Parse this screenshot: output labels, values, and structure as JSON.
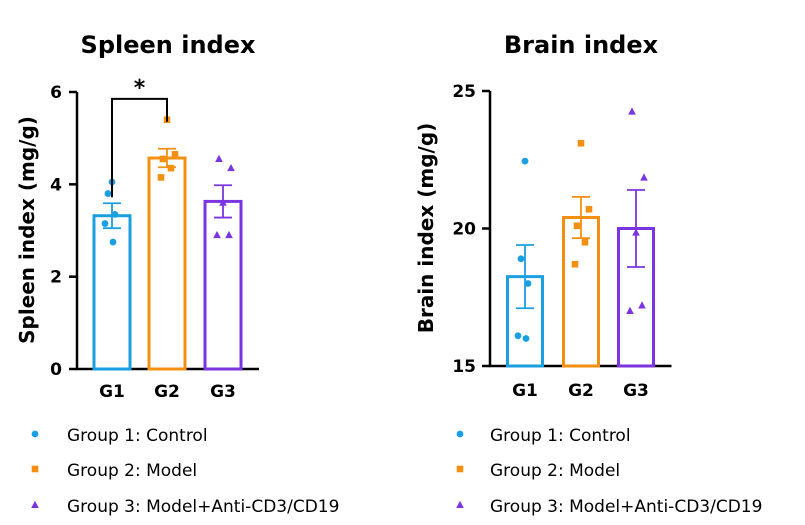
{
  "colors": {
    "g1": "#1a9fe0",
    "g2": "#f39012",
    "g3": "#7b35e0",
    "axis": "#000000"
  },
  "legend": [
    {
      "marker": "circle",
      "color_key": "g1",
      "label": "Group 1: Control"
    },
    {
      "marker": "square",
      "color_key": "g2",
      "label": "Group 2: Model"
    },
    {
      "marker": "triangle",
      "color_key": "g3",
      "label": "Group 3: Model+Anti-CD3/CD19"
    }
  ],
  "chart_data": [
    {
      "type": "bar",
      "title": "Spleen index",
      "ylabel": "Spleen index (mg/g)",
      "xlabel": "",
      "categories": [
        "G1",
        "G2",
        "G3"
      ],
      "ylim": [
        0,
        6
      ],
      "yticks": [
        0,
        2,
        4,
        6
      ],
      "bars": [
        {
          "category": "G1",
          "mean": 3.32,
          "sem": 0.27,
          "points": [
            4.05,
            3.8,
            3.35,
            3.15,
            2.75
          ]
        },
        {
          "category": "G2",
          "mean": 4.57,
          "sem": 0.2,
          "points": [
            5.4,
            4.65,
            4.55,
            4.35,
            4.15
          ]
        },
        {
          "category": "G3",
          "mean": 3.63,
          "sem": 0.35,
          "points": [
            4.55,
            4.35,
            3.6,
            2.9,
            2.9
          ]
        }
      ],
      "significance": [
        {
          "from": "G1",
          "to": "G2",
          "label": "*",
          "y": 5.85
        }
      ]
    },
    {
      "type": "bar",
      "title": "Brain index",
      "ylabel": "Brain index (mg/g)",
      "xlabel": "",
      "categories": [
        "G1",
        "G2",
        "G3"
      ],
      "ylim": [
        15,
        25
      ],
      "yticks": [
        15,
        20,
        25
      ],
      "bars": [
        {
          "category": "G1",
          "mean": 18.25,
          "sem": 1.15,
          "points": [
            22.45,
            18.9,
            18.0,
            16.1,
            16.0
          ]
        },
        {
          "category": "G2",
          "mean": 20.4,
          "sem": 0.75,
          "points": [
            23.1,
            20.7,
            20.1,
            19.5,
            18.7
          ]
        },
        {
          "category": "G3",
          "mean": 20.0,
          "sem": 1.4,
          "points": [
            24.25,
            21.85,
            19.85,
            17.2,
            17.0
          ]
        }
      ],
      "significance": []
    }
  ]
}
